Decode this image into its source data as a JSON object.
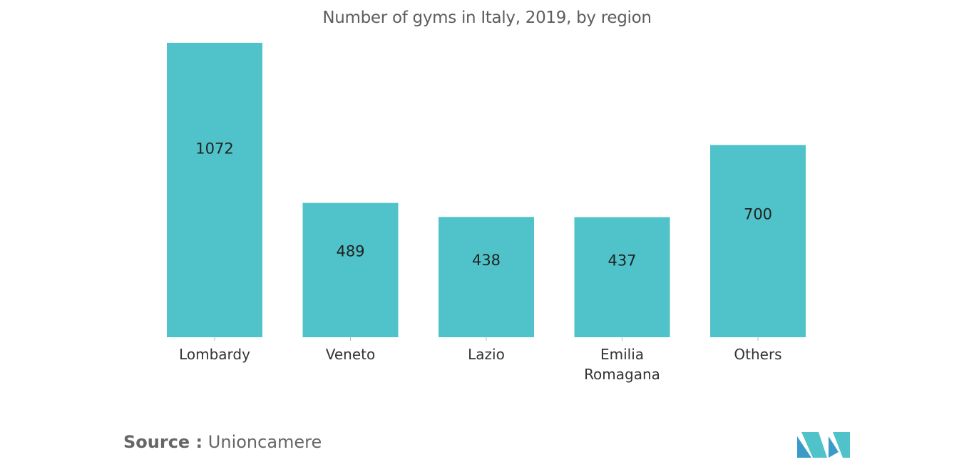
{
  "chart_data": {
    "type": "bar",
    "title": "Number of gyms in Italy, 2019, by region",
    "categories": [
      "Lombardy",
      "Veneto",
      "Lazio",
      "Emilia Romagana",
      "Others"
    ],
    "category_lines": [
      [
        "Lombardy"
      ],
      [
        "Veneto"
      ],
      [
        "Lazio"
      ],
      [
        "Emilia",
        "Romagana"
      ],
      [
        "Others"
      ]
    ],
    "values": [
      1072,
      489,
      438,
      437,
      700
    ],
    "data_labels": [
      "1072",
      "489",
      "438",
      "437",
      "700"
    ],
    "xlabel": "",
    "ylabel": "",
    "ylim": [
      0,
      1072
    ],
    "grid": false,
    "legend": "none",
    "bar_color": "#4fc3c9"
  },
  "source": {
    "label": "Source :",
    "value": "Unioncamere"
  },
  "logo": {
    "icon": "mordor-logo-icon",
    "colors": [
      "#3a9bc9",
      "#4fc3c9",
      "#1f5f8a"
    ]
  }
}
